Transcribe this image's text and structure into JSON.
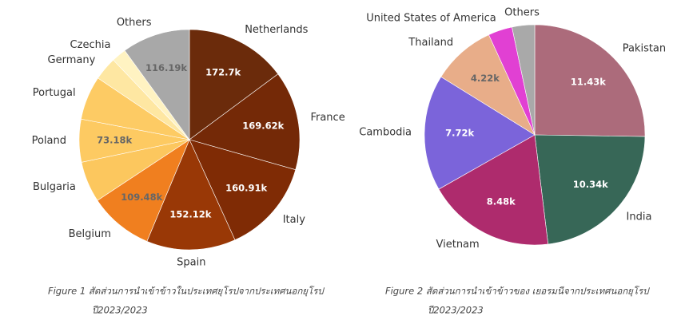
{
  "chart_data": [
    {
      "type": "pie",
      "categories": [
        "Netherlands",
        "France",
        "Italy",
        "Spain",
        "Belgium",
        "Bulgaria",
        "Poland",
        "Portugal",
        "Germany",
        "Czechia",
        "Others"
      ],
      "values": [
        172700,
        169620,
        160910,
        152120,
        109480,
        70000,
        73180,
        75000,
        40000,
        25000,
        116190
      ],
      "value_labels": [
        "172.7k",
        "169.62k",
        "160.91k",
        "152.12k",
        "109.48k",
        null,
        "73.18k",
        null,
        null,
        null,
        "116.19k"
      ],
      "colors": [
        "#6b2b0b",
        "#742907",
        "#7f2b05",
        "#993806",
        "#f07f1f",
        "#fcc75e",
        "#fdca62",
        "#fdcb64",
        "#fee7a2",
        "#fff3c2",
        "#a8a8a8"
      ],
      "caption": [
        "Figure 1 สัดส่วนการนำเข้าข้าวในประเทศยุโรปจากประเทศนอกยุโรป",
        "ปี2023/2023"
      ]
    },
    {
      "type": "pie",
      "categories": [
        "Pakistan",
        "India",
        "Vietnam",
        "Cambodia",
        "Thailand",
        "United States of America",
        "Others"
      ],
      "values": [
        11430,
        10340,
        8480,
        7720,
        4220,
        1600,
        1500
      ],
      "value_labels": [
        "11.43k",
        "10.34k",
        "8.48k",
        "7.72k",
        "4.22k",
        null,
        null
      ],
      "colors": [
        "#ac6b7b",
        "#376757",
        "#ae2b6d",
        "#7b64da",
        "#e8ad89",
        "#e140d3",
        "#a9a9a9"
      ],
      "caption": [
        "Figure 2 สัดส่วนการนำเข้าข้าวของ เยอรมนีจากประเทศนอกยุโรป",
        "ปี2023/2023"
      ]
    }
  ]
}
